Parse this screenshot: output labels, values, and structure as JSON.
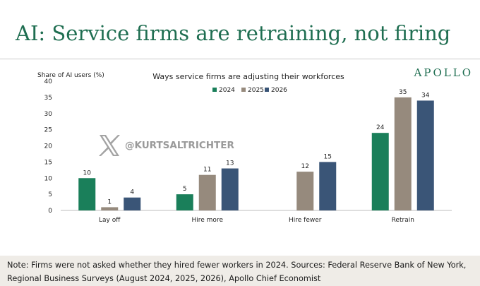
{
  "header": {
    "title": "AI: Service firms are retraining, not firing",
    "brand": "APOLLO"
  },
  "watermark": {
    "handle": "@KURTSALTRICHTER",
    "icon": "x-logo-icon"
  },
  "footer": {
    "note": "Note: Firms were not asked whether they hired fewer workers in 2024. Sources: Federal Reserve Bank of New York, Regional Business Surveys (August 2024, 2025, 2026), Apollo Chief Economist"
  },
  "chart_data": {
    "type": "bar",
    "title": "Ways service firms are adjusting their workforces",
    "ylabel": "Share of AI users (%)",
    "xlabel": "",
    "ylim": [
      0,
      40
    ],
    "yticks": [
      0,
      5,
      10,
      15,
      20,
      25,
      30,
      35,
      40
    ],
    "grid": false,
    "legend_position": "top",
    "categories": [
      "Lay off",
      "Hire more",
      "Hire fewer",
      "Retrain"
    ],
    "series": [
      {
        "name": "2024",
        "color": "#1a7f5a",
        "values": [
          10,
          5,
          null,
          24
        ]
      },
      {
        "name": "2025",
        "color": "#968a7d",
        "values": [
          1,
          11,
          12,
          35
        ]
      },
      {
        "name": "2026",
        "color": "#3a5577",
        "values": [
          4,
          13,
          15,
          34
        ]
      }
    ]
  }
}
